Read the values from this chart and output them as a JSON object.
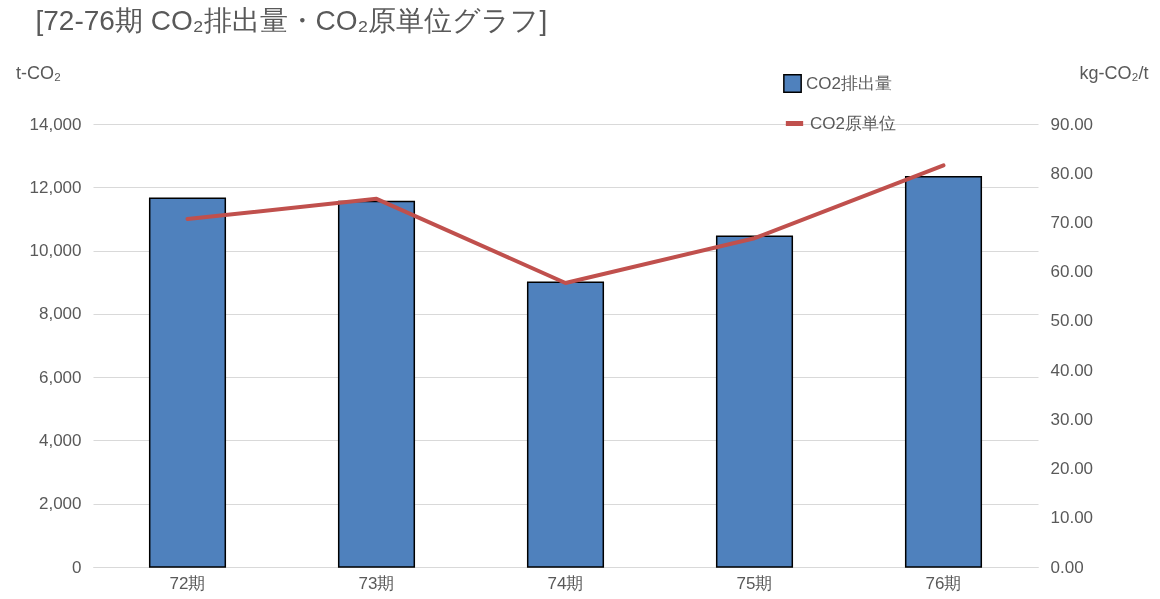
{
  "chart_data": {
    "type": "bar",
    "title": "[72-76期 CO₂排出量・CO₂原単位グラフ]",
    "ylabel": "t-CO₂",
    "y2label": "kg-CO₂/t",
    "categories": [
      "72期",
      "73期",
      "74期",
      "75期",
      "76期"
    ],
    "series": [
      {
        "name": "CO2排出量",
        "color": "#4f81bd",
        "values": [
          11650,
          11550,
          9000,
          10450,
          12330
        ]
      },
      {
        "name": "CO2原単位",
        "type": "line",
        "axis": "y2",
        "color": "#c0504d",
        "values": [
          70.7,
          74.8,
          57.7,
          66.8,
          81.6
        ]
      }
    ],
    "ylim": [
      0,
      14000
    ],
    "yticks": [
      0,
      {
        "value": 2000,
        "label": "2,000"
      },
      {
        "value": 4000,
        "label": "4,000"
      },
      {
        "value": 6000,
        "label": "6,000"
      },
      {
        "value": 8000,
        "label": "8,000"
      },
      {
        "value": 10000,
        "label": "10,000"
      },
      {
        "value": 12000,
        "label": "12,000"
      },
      {
        "value": 14000,
        "label": "14,000"
      }
    ],
    "y2lim": [
      0,
      90
    ],
    "y2ticks": [
      {
        "value": 0,
        "label": "0.00"
      },
      {
        "value": 10,
        "label": "10.00"
      },
      {
        "value": 20,
        "label": "20.00"
      },
      {
        "value": 30,
        "label": "30.00"
      },
      {
        "value": 40,
        "label": "40.00"
      },
      {
        "value": 50,
        "label": "50.00"
      },
      {
        "value": 60,
        "label": "60.00"
      },
      {
        "value": 70,
        "label": "70.00"
      },
      {
        "value": 80,
        "label": "80.00"
      },
      {
        "value": 90,
        "label": "90.00"
      }
    ],
    "grid": "y",
    "legend": "top right"
  }
}
